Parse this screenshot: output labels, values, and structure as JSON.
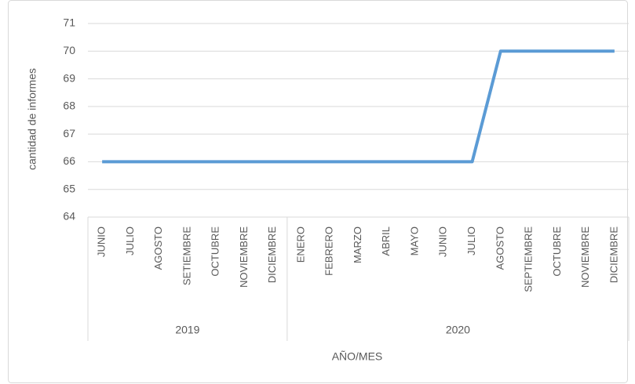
{
  "chart_data": {
    "type": "line",
    "y_axis_label": "cantidad de informes",
    "x_axis_label": "AÑO/MES",
    "groups": [
      {
        "name": "2019",
        "categories": [
          "JUNIO",
          "JULIO",
          "AGOSTO",
          "SETIEMBRE",
          "OCTUBRE",
          "NOVIEMBRE",
          "DICIEMBRE"
        ]
      },
      {
        "name": "2020",
        "categories": [
          "ENERO",
          "FEBRERO",
          "MARZO",
          "ABRIL",
          "MAYO",
          "JUNIO",
          "JULIO",
          "AGOSTO",
          "SEPTIEMBRE",
          "OCTUBRE",
          "NOVIEMBRE",
          "DICIEMBRE"
        ]
      }
    ],
    "series": [
      {
        "color": "#5b9bd5",
        "values": [
          66,
          66,
          66,
          66,
          66,
          66,
          66,
          66,
          66,
          66,
          66,
          66,
          66,
          66,
          70,
          70,
          70,
          70,
          70
        ]
      }
    ],
    "ylim": [
      64,
      71
    ],
    "yticks": [
      64,
      65,
      66,
      67,
      68,
      69,
      70,
      71
    ],
    "grid": true
  }
}
